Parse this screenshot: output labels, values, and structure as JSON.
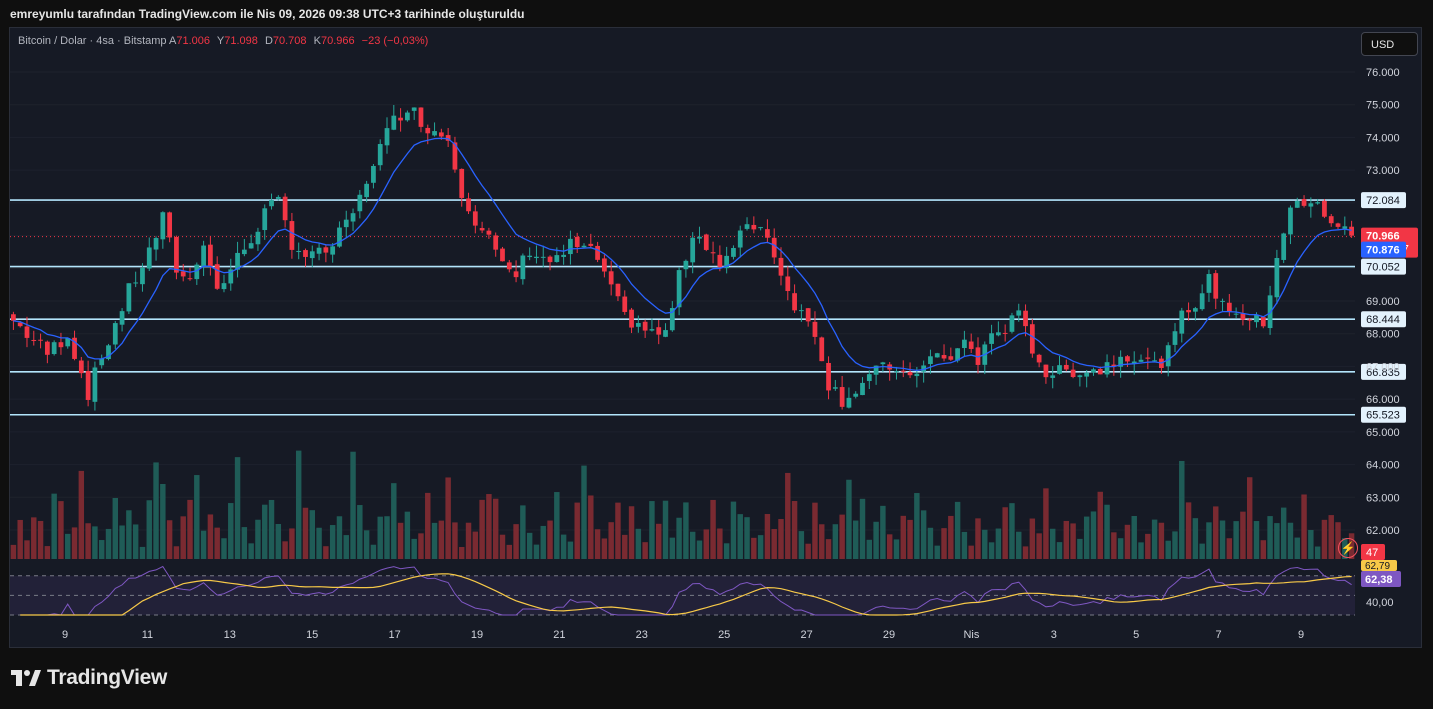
{
  "header": {
    "text": "emreyumlu tarafından TradingView.com ile Nis 09, 2026 09:38 UTC+3 tarihinde oluşturuldu"
  },
  "legend": {
    "symbol": "Bitcoin / Dolar · 4sa · Bitstamp",
    "a_label": "A",
    "a_value": "71.006",
    "y_label": "Y",
    "y_value": "71.098",
    "d_label": "D",
    "d_value": "70.708",
    "k_label": "K",
    "k_value": "70.966",
    "change": "−23 (−0,03%)"
  },
  "currency_button": "USD",
  "logo_text": "TradingView",
  "icons": {
    "logo": "tradingview-logo-icon",
    "alert": "lightning-bolt-icon"
  },
  "colors": {
    "up": "#26a69a",
    "down": "#f23645",
    "ema": "#2962ff",
    "level": "#b3e5fc",
    "rsi": "#7e57c2",
    "rsi_ma": "#f7c948"
  },
  "chart_data": {
    "type": "candlestick",
    "price_axis": {
      "ticks": [
        "76.000",
        "75.000",
        "74.000",
        "73.000",
        "72.000",
        "71.000",
        "70.000",
        "69.000",
        "68.000",
        "67.000",
        "66.000",
        "65.000",
        "64.000",
        "63.000",
        "62.000"
      ],
      "range": [
        61500,
        76300
      ]
    },
    "x_ticks": [
      "9",
      "11",
      "13",
      "15",
      "17",
      "19",
      "21",
      "23",
      "25",
      "27",
      "29",
      "Nis",
      "3",
      "5",
      "7",
      "9"
    ],
    "horizontal_levels": [
      {
        "price": 72084,
        "label": "72.084"
      },
      {
        "price": 70052,
        "label": "70.052"
      },
      {
        "price": 68444,
        "label": "68.444"
      },
      {
        "price": 66835,
        "label": "66.835"
      },
      {
        "price": 65523,
        "label": "65.523"
      }
    ],
    "last_price": {
      "price": 70966,
      "label": "70.966",
      "countdown": "01:21:47"
    },
    "ema": {
      "price": 70876,
      "label": "70.876"
    },
    "volume_label": "47",
    "rsi": {
      "ticks": [
        "40,00"
      ],
      "value_label": "62,38",
      "ma_label": "62,79",
      "range": [
        30,
        80
      ],
      "upper": 70,
      "lower": 30
    },
    "price_path": [
      [
        0,
        68400
      ],
      [
        5,
        67400
      ],
      [
        8,
        68000
      ],
      [
        11,
        66200
      ],
      [
        14,
        67800
      ],
      [
        17,
        69300
      ],
      [
        20,
        70500
      ],
      [
        22,
        71500
      ],
      [
        24,
        70000
      ],
      [
        26,
        69600
      ],
      [
        28,
        70900
      ],
      [
        30,
        69300
      ],
      [
        33,
        70300
      ],
      [
        35,
        70900
      ],
      [
        37,
        71700
      ],
      [
        39,
        72000
      ],
      [
        41,
        70800
      ],
      [
        43,
        70400
      ],
      [
        45,
        70400
      ],
      [
        47,
        70700
      ],
      [
        49,
        71300
      ],
      [
        51,
        72100
      ],
      [
        53,
        73300
      ],
      [
        56,
        74500
      ],
      [
        58,
        75000
      ],
      [
        60,
        74500
      ],
      [
        62,
        74200
      ],
      [
        64,
        74000
      ],
      [
        66,
        72400
      ],
      [
        68,
        71500
      ],
      [
        70,
        70900
      ],
      [
        72,
        70000
      ],
      [
        74,
        69800
      ],
      [
        76,
        70600
      ],
      [
        78,
        70300
      ],
      [
        80,
        70200
      ],
      [
        82,
        70700
      ],
      [
        84,
        70600
      ],
      [
        86,
        70300
      ],
      [
        88,
        69300
      ],
      [
        90,
        68500
      ],
      [
        92,
        68300
      ],
      [
        94,
        68000
      ],
      [
        96,
        68000
      ],
      [
        98,
        69700
      ],
      [
        100,
        71100
      ],
      [
        102,
        70800
      ],
      [
        104,
        70100
      ],
      [
        106,
        70500
      ],
      [
        108,
        71400
      ],
      [
        110,
        71300
      ],
      [
        112,
        70500
      ],
      [
        114,
        69300
      ],
      [
        116,
        68600
      ],
      [
        118,
        68100
      ],
      [
        120,
        66500
      ],
      [
        122,
        66000
      ],
      [
        124,
        66300
      ],
      [
        126,
        66700
      ],
      [
        128,
        66900
      ],
      [
        130,
        67000
      ],
      [
        132,
        66500
      ],
      [
        134,
        67200
      ],
      [
        136,
        67300
      ],
      [
        138,
        67100
      ],
      [
        140,
        67900
      ],
      [
        142,
        67100
      ],
      [
        144,
        68000
      ],
      [
        146,
        68200
      ],
      [
        148,
        68500
      ],
      [
        150,
        67600
      ],
      [
        152,
        66800
      ],
      [
        154,
        66800
      ],
      [
        156,
        66900
      ],
      [
        158,
        66900
      ],
      [
        160,
        66900
      ],
      [
        162,
        67200
      ],
      [
        164,
        67400
      ],
      [
        166,
        67300
      ],
      [
        168,
        67000
      ],
      [
        170,
        67400
      ],
      [
        172,
        68500
      ],
      [
        174,
        69000
      ],
      [
        176,
        69600
      ],
      [
        178,
        68900
      ],
      [
        180,
        68700
      ],
      [
        182,
        68400
      ],
      [
        184,
        68300
      ],
      [
        186,
        70400
      ],
      [
        188,
        71900
      ],
      [
        190,
        71900
      ],
      [
        192,
        71900
      ],
      [
        194,
        71500
      ],
      [
        196,
        71100
      ],
      [
        197,
        71000
      ]
    ],
    "volume_pattern": [
      1,
      2,
      1,
      3,
      2,
      1,
      4,
      3,
      2,
      2,
      6,
      3,
      2,
      1,
      2,
      5,
      2,
      3,
      2,
      1,
      3,
      6,
      4,
      2,
      1,
      2,
      3,
      4,
      2,
      3,
      2,
      1,
      3,
      5,
      2,
      1,
      2,
      4,
      3,
      2,
      1,
      2,
      6,
      4,
      3,
      2,
      1,
      2,
      3,
      2,
      5,
      3,
      2,
      1,
      2,
      3,
      4,
      2,
      3,
      1,
      2,
      5,
      3,
      2,
      4,
      2,
      1,
      3,
      2,
      4,
      3,
      5,
      2,
      1,
      2,
      3,
      2,
      1,
      2,
      3,
      4,
      2,
      1,
      3,
      5,
      3,
      2,
      1,
      2,
      3,
      2,
      4,
      2,
      1,
      3,
      2,
      3,
      1,
      2,
      4,
      2,
      1,
      2,
      3,
      2,
      1,
      4,
      3,
      2,
      1,
      2,
      3,
      2,
      2,
      4,
      3,
      2,
      1,
      3,
      2,
      1,
      2,
      3,
      4,
      2,
      3,
      1,
      2,
      3,
      2,
      1,
      2,
      3,
      4,
      3,
      2,
      1,
      2,
      3,
      4,
      2,
      1,
      3,
      2,
      1,
      2,
      4,
      3,
      2,
      1,
      3,
      2,
      4,
      2,
      1,
      3,
      2,
      1,
      2,
      3,
      4,
      3,
      2,
      1,
      2,
      3,
      1,
      2,
      3,
      2,
      1,
      2,
      5,
      3,
      2,
      1,
      2,
      3,
      2,
      1,
      2,
      3,
      4,
      2,
      1,
      2,
      3,
      4,
      2,
      1,
      3,
      2,
      1,
      2,
      3,
      2,
      1,
      2,
      3
    ]
  }
}
